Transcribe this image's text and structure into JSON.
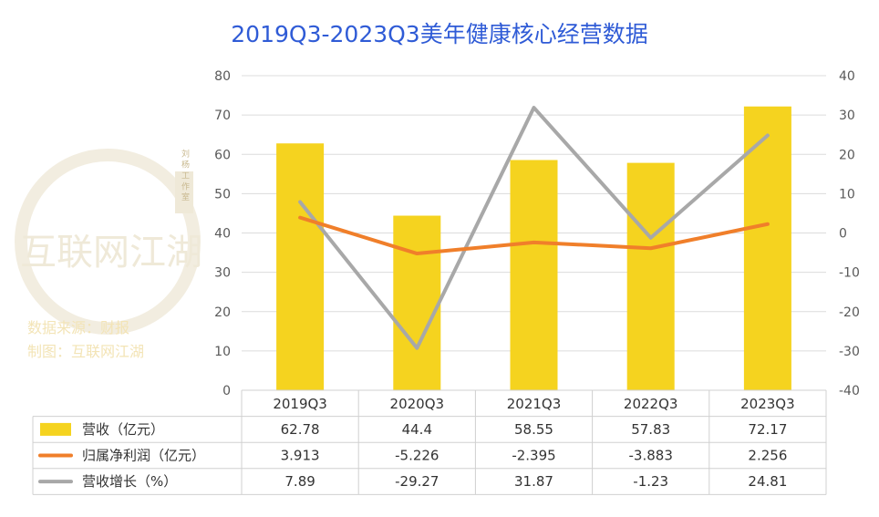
{
  "colors": {
    "title": "#2f5bd6",
    "bar": "#f5d31f",
    "line_profit": "#f07f2a",
    "line_growth": "#a8a8a8",
    "grid": "#dcdcdc",
    "axis_text": "#595959",
    "watermark": "#efe9d8",
    "watermark_text": "#f3e4b6"
  },
  "watermark": {
    "logo_text": "互联网江湖",
    "seal_text": "刘 杨 工 作 室",
    "source_line": "数据来源：财报",
    "maker_line": "制图：互联网江湖"
  },
  "chart_data": {
    "type": "bar",
    "title": "2019Q3-2023Q3美年健康核心经营数据",
    "categories": [
      "2019Q3",
      "2020Q3",
      "2021Q3",
      "2022Q3",
      "2023Q3"
    ],
    "y_left": {
      "min": 0,
      "max": 80,
      "ticks": [
        "0",
        "10",
        "20",
        "30",
        "40",
        "50",
        "60",
        "70",
        "80"
      ]
    },
    "y_right": {
      "min": -40,
      "max": 40,
      "ticks": [
        "-40",
        "-30",
        "-20",
        "-10",
        "0",
        "10",
        "20",
        "30",
        "40"
      ]
    },
    "grid": true,
    "legend": "table-below",
    "series": [
      {
        "name": "营收（亿元）",
        "type": "bar",
        "axis": "left",
        "values": [
          62.78,
          44.4,
          58.55,
          57.83,
          72.17
        ],
        "labels": [
          "62.78",
          "44.4",
          "58.55",
          "57.83",
          "72.17"
        ]
      },
      {
        "name": "归属净利润（亿元）",
        "type": "line",
        "axis": "right",
        "values": [
          3.913,
          -5.226,
          -2.395,
          -3.883,
          2.256
        ],
        "labels": [
          "3.913",
          "-5.226",
          "-2.395",
          "-3.883",
          "2.256"
        ]
      },
      {
        "name": "营收增长（%）",
        "type": "line",
        "axis": "right",
        "values": [
          7.89,
          -29.27,
          31.87,
          -1.23,
          24.81
        ],
        "labels": [
          "7.89",
          "-29.27",
          "31.87",
          "-1.23",
          "24.81"
        ]
      }
    ]
  }
}
